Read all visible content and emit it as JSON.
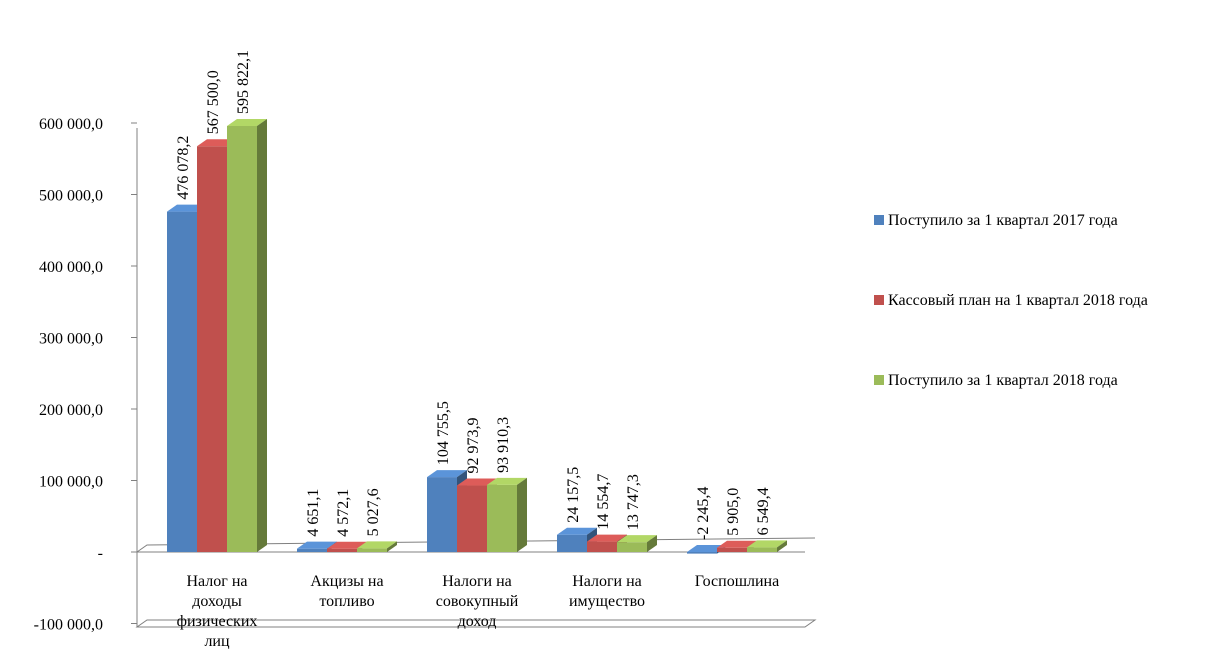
{
  "chart_data": {
    "type": "bar",
    "categories": [
      [
        "Налог на",
        "доходы",
        "физических",
        "лиц"
      ],
      [
        "Акцизы на",
        "топливо"
      ],
      [
        "Налоги на",
        "совокупный",
        "доход"
      ],
      [
        "Налоги на",
        "имущество"
      ],
      [
        "Госпошлина"
      ]
    ],
    "series": [
      {
        "name": "Поступило за 1 квартал 2017 года",
        "color": "#4f81bd",
        "values": [
          476078.2,
          4651.1,
          104755.5,
          24157.5,
          -2245.4
        ],
        "labels": [
          "476 078,2",
          "4 651,1",
          "104 755,5",
          "24 157,5",
          "-2 245,4"
        ]
      },
      {
        "name": "Кассовый план на 1 квартал 2018 года",
        "color": "#c0504d",
        "values": [
          567500.0,
          4572.1,
          92973.9,
          14554.7,
          5905.0
        ],
        "labels": [
          "567 500,0",
          "4 572,1",
          "92 973,9",
          "14 554,7",
          "5 905,0"
        ]
      },
      {
        "name": "Поступило за  1 квартал 2018 года",
        "color": "#9bbb59",
        "values": [
          595822.1,
          5027.6,
          93910.3,
          13747.3,
          6549.4
        ],
        "labels": [
          "595 822,1",
          "5 027,6",
          "93 910,3",
          "13 747,3",
          "6 549,4"
        ]
      }
    ],
    "yticks": [
      {
        "value": 600000,
        "label": "600 000,0"
      },
      {
        "value": 500000,
        "label": "500 000,0"
      },
      {
        "value": 400000,
        "label": "400 000,0"
      },
      {
        "value": 300000,
        "label": "300 000,0"
      },
      {
        "value": 200000,
        "label": "200 000,0"
      },
      {
        "value": 100000,
        "label": "100 000,0"
      },
      {
        "value": 0,
        "label": "-"
      },
      {
        "value": -100000,
        "label": "-100 000,0"
      }
    ],
    "ylim": [
      -100000,
      600000
    ],
    "legend_position": "right",
    "grid": false
  }
}
